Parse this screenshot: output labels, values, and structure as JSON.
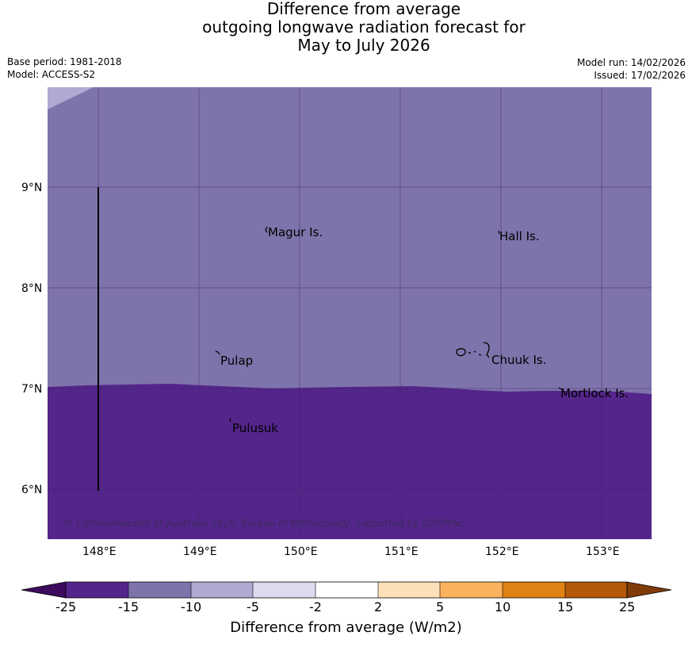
{
  "title": {
    "line1": "Difference from average",
    "line2": "outgoing longwave radiation forecast for",
    "line3": "May to July 2026"
  },
  "meta": {
    "base_period": "Base period: 1981-2018",
    "model": "Model: ACCESS-S2",
    "model_run": "Model run: 14/02/2026",
    "issued": "Issued: 17/02/2026"
  },
  "map": {
    "lat_labels": [
      "9°N",
      "8°N",
      "7°N",
      "6°N"
    ],
    "lon_labels": [
      "148°E",
      "149°E",
      "150°E",
      "151°E",
      "152°E",
      "153°E"
    ],
    "places": {
      "magur": "Magur Is.",
      "hall": "Hall Is.",
      "pulap": "Pulap",
      "chuuk": "Chuuk Is.",
      "mortlock": "Mortlock Is.",
      "pulusuk": "Pulusuk"
    },
    "copyright": "© Commonwealth of Australia 2026, Bureau of Meteorology, supported by COSPPac",
    "colors": {
      "lt_minus15": "#7e73ab",
      "lt_minus25": "#54258a",
      "minus10": "#b0a9d2"
    }
  },
  "colorbar": {
    "title": "Difference from average (W/m2)",
    "ticks": [
      "-25",
      "-15",
      "-10",
      "-5",
      "-2",
      "2",
      "5",
      "10",
      "15",
      "25"
    ],
    "colors": [
      "#3d0a5e",
      "#54258a",
      "#7e73ab",
      "#b0a9d2",
      "#dcdbed",
      "#ffffff",
      "#fde0b7",
      "#fbb25d",
      "#e08114",
      "#b35709",
      "#7f3b08"
    ]
  }
}
